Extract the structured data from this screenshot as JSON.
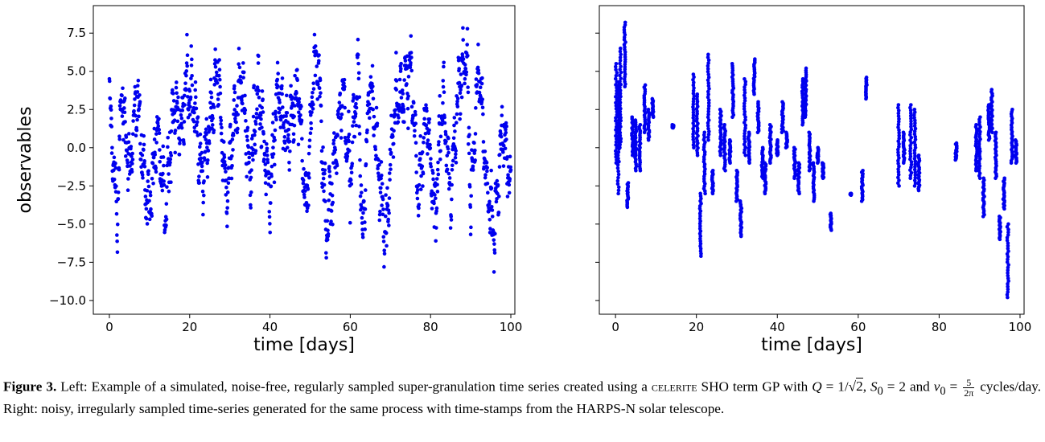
{
  "chart_data": [
    {
      "type": "scatter",
      "panel": "left",
      "title": "",
      "xlabel": "time [days]",
      "ylabel": "observables",
      "xlim": [
        -4,
        101
      ],
      "ylim": [
        -10.9,
        9.3
      ],
      "xticks": [
        0,
        20,
        40,
        60,
        80,
        100
      ],
      "xtick_labels": [
        "0",
        "20",
        "40",
        "60",
        "80",
        "100"
      ],
      "yticks": [
        7.5,
        5.0,
        2.5,
        0.0,
        -2.5,
        -5.0,
        -7.5,
        -10.0
      ],
      "ytick_labels": [
        "7.5",
        "5.0",
        "2.5",
        "0.0",
        "−2.5",
        "−5.0",
        "−7.5",
        "−10.0"
      ],
      "marker_color": "#0000ee",
      "sampling": "regular",
      "n_points": 1600,
      "anchor_points": {
        "x": [
          0,
          2,
          3,
          5,
          7,
          9,
          10,
          12,
          14,
          16,
          18,
          19,
          21,
          23,
          25,
          27,
          29,
          31,
          33,
          35,
          37,
          40,
          42,
          44,
          47,
          49,
          51,
          52,
          54,
          56,
          58,
          60,
          62,
          63,
          65,
          67,
          69,
          71,
          73,
          75,
          77,
          79,
          81,
          83,
          85,
          87,
          89,
          90,
          92,
          94,
          96,
          98,
          100
        ],
        "y": [
          3.8,
          -6.3,
          5.0,
          -2.0,
          4.5,
          -3.5,
          -5.5,
          2.0,
          -5.8,
          4.0,
          1.5,
          5.5,
          4.5,
          -2.8,
          1.5,
          6.9,
          -4.5,
          2.0,
          6.5,
          -3.0,
          5.0,
          -4.0,
          5.5,
          1.0,
          5.0,
          -5.5,
          7.0,
          7.8,
          -7.5,
          -1.5,
          5.5,
          -3.0,
          7.5,
          -8.4,
          6.5,
          -2.0,
          -7.4,
          4.0,
          4.5,
          7.5,
          -4.5,
          3.0,
          -6.0,
          4.5,
          -4.5,
          5.5,
          8.6,
          -5.0,
          7.5,
          -3.5,
          -7.1,
          2.0,
          -3.8
        ]
      }
    },
    {
      "type": "scatter",
      "panel": "right",
      "title": "",
      "xlabel": "time [days]",
      "ylabel": "",
      "xlim": [
        -4,
        101
      ],
      "ylim": [
        -10.9,
        9.3
      ],
      "xticks": [
        0,
        20,
        40,
        60,
        80,
        100
      ],
      "xtick_labels": [
        "0",
        "20",
        "40",
        "60",
        "80",
        "100"
      ],
      "yticks": [
        7.5,
        5.0,
        2.5,
        0.0,
        -2.5,
        -5.0,
        -7.5,
        -10.0
      ],
      "ytick_labels": [
        "",
        "",
        "",
        "",
        "",
        "",
        "",
        ""
      ],
      "marker_color": "#0000ee",
      "sampling": "irregular",
      "observation_runs": [
        {
          "day": 0.2,
          "ymin": -1.0,
          "ymax": 5.5
        },
        {
          "day": 0.7,
          "ymin": -3.0,
          "ymax": 4.3
        },
        {
          "day": 1.2,
          "ymin": 0.0,
          "ymax": 6.5
        },
        {
          "day": 2.3,
          "ymin": 4.0,
          "ymax": 8.2
        },
        {
          "day": 3.0,
          "ymin": -3.9,
          "ymax": -2.3
        },
        {
          "day": 4.2,
          "ymin": -0.5,
          "ymax": 2.0
        },
        {
          "day": 5.0,
          "ymin": -1.5,
          "ymax": 1.8
        },
        {
          "day": 6.0,
          "ymin": -1.5,
          "ymax": 1.5
        },
        {
          "day": 7.2,
          "ymin": 1.0,
          "ymax": 4.1
        },
        {
          "day": 8.2,
          "ymin": 0.5,
          "ymax": 2.5
        },
        {
          "day": 9.2,
          "ymin": 2.0,
          "ymax": 3.2
        },
        {
          "day": 14.2,
          "ymin": 1.3,
          "ymax": 1.5
        },
        {
          "day": 19.3,
          "ymin": 0.0,
          "ymax": 4.8
        },
        {
          "day": 20.2,
          "ymin": -0.5,
          "ymax": 3.5
        },
        {
          "day": 21.0,
          "ymin": -7.1,
          "ymax": -3.0
        },
        {
          "day": 22.0,
          "ymin": -3.0,
          "ymax": 1.0
        },
        {
          "day": 23.0,
          "ymin": 0.5,
          "ymax": 6.1
        },
        {
          "day": 24.0,
          "ymin": -3.0,
          "ymax": -1.5
        },
        {
          "day": 26.0,
          "ymin": -0.5,
          "ymax": 2.5
        },
        {
          "day": 27.0,
          "ymin": -1.5,
          "ymax": 1.5
        },
        {
          "day": 28.3,
          "ymin": -1.0,
          "ymax": 0.5
        },
        {
          "day": 29.0,
          "ymin": 2.0,
          "ymax": 5.5
        },
        {
          "day": 30.0,
          "ymin": -3.5,
          "ymax": -1.5
        },
        {
          "day": 31.0,
          "ymin": -5.8,
          "ymax": -3.5
        },
        {
          "day": 32.0,
          "ymin": -0.5,
          "ymax": 4.5
        },
        {
          "day": 33.0,
          "ymin": -1.0,
          "ymax": 1.0
        },
        {
          "day": 34.3,
          "ymin": 3.5,
          "ymax": 5.8
        },
        {
          "day": 35.3,
          "ymin": 1.0,
          "ymax": 3.0
        },
        {
          "day": 36.3,
          "ymin": -2.0,
          "ymax": 0.0
        },
        {
          "day": 37.0,
          "ymin": -3.0,
          "ymax": -1.0
        },
        {
          "day": 38.3,
          "ymin": -1.0,
          "ymax": 1.5
        },
        {
          "day": 40.0,
          "ymin": -0.5,
          "ymax": 0.5
        },
        {
          "day": 41.3,
          "ymin": 1.0,
          "ymax": 3.0
        },
        {
          "day": 42.3,
          "ymin": 0.0,
          "ymax": 1.0
        },
        {
          "day": 44.3,
          "ymin": -2.0,
          "ymax": 0.0
        },
        {
          "day": 45.3,
          "ymin": -3.0,
          "ymax": -1.0
        },
        {
          "day": 46.3,
          "ymin": 1.5,
          "ymax": 4.5
        },
        {
          "day": 47.0,
          "ymin": 2.0,
          "ymax": 5.2
        },
        {
          "day": 48.0,
          "ymin": -1.5,
          "ymax": 1.0
        },
        {
          "day": 49.0,
          "ymin": -3.5,
          "ymax": -1.0
        },
        {
          "day": 50.0,
          "ymin": -1.0,
          "ymax": 0.0
        },
        {
          "day": 51.3,
          "ymin": -2.0,
          "ymax": -1.0
        },
        {
          "day": 53.2,
          "ymin": -5.4,
          "ymax": -4.3
        },
        {
          "day": 58.2,
          "ymin": -3.1,
          "ymax": -3.0
        },
        {
          "day": 61.0,
          "ymin": -3.5,
          "ymax": -1.5
        },
        {
          "day": 62.0,
          "ymin": 3.2,
          "ymax": 4.6
        },
        {
          "day": 70.0,
          "ymin": -2.5,
          "ymax": 2.8
        },
        {
          "day": 71.3,
          "ymin": -1.0,
          "ymax": 1.0
        },
        {
          "day": 73.0,
          "ymin": -2.0,
          "ymax": 2.8
        },
        {
          "day": 74.0,
          "ymin": -2.5,
          "ymax": 2.5
        },
        {
          "day": 75.0,
          "ymin": -2.8,
          "ymax": -0.5
        },
        {
          "day": 84.2,
          "ymin": -0.8,
          "ymax": 0.3
        },
        {
          "day": 89.2,
          "ymin": -1.5,
          "ymax": 1.5
        },
        {
          "day": 90.0,
          "ymin": -2.0,
          "ymax": 2.0
        },
        {
          "day": 91.0,
          "ymin": -4.5,
          "ymax": -2.0
        },
        {
          "day": 92.3,
          "ymin": 0.5,
          "ymax": 2.8
        },
        {
          "day": 93.0,
          "ymin": 1.0,
          "ymax": 3.8
        },
        {
          "day": 94.0,
          "ymin": -2.0,
          "ymax": 1.0
        },
        {
          "day": 95.0,
          "ymin": -6.0,
          "ymax": -4.5
        },
        {
          "day": 96.0,
          "ymin": -4.0,
          "ymax": -2.0
        },
        {
          "day": 97.0,
          "ymin": -9.8,
          "ymax": -5.0
        },
        {
          "day": 98.0,
          "ymin": -1.0,
          "ymax": 2.5
        },
        {
          "day": 99.0,
          "ymin": -1.0,
          "ymax": 0.5
        }
      ]
    }
  ],
  "caption": {
    "label": "Figure 3.",
    "text_1": " Left: Example of a simulated, noise-free, regularly sampled super-granulation time series created using a ",
    "software": "celerite",
    "text_2": " SHO term GP with ",
    "q_var": "Q",
    "q_eq": " = 1/",
    "q_root": "2",
    "q_end": ",",
    "s_var": "S",
    "s_sub": "0",
    "s_eq": " = 2 and ",
    "nu_var": "ν",
    "nu_sub": "0",
    "nu_eq": " = ",
    "frac_num": "5",
    "frac_den": "2π",
    "text_3": " cycles/day. Right: noisy, irregularly sampled time-series generated for the same process with time-stamps from the HARPS-N solar telescope."
  }
}
